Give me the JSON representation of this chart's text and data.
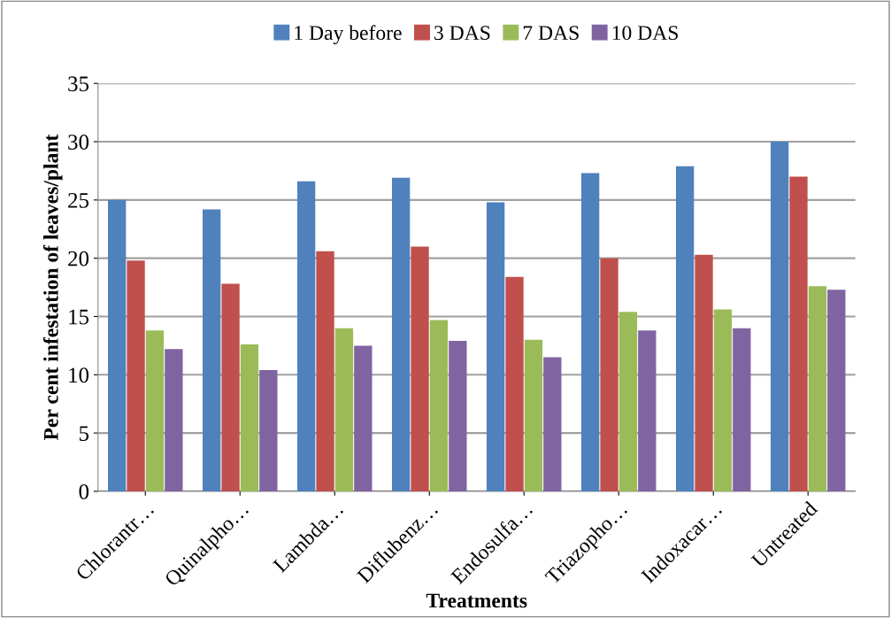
{
  "chart_data": {
    "type": "bar",
    "xlabel": "Treatments",
    "ylabel": "Per cent infestation of leaves/plant",
    "categories": [
      "Chlorantr…",
      "Quinalpho…",
      "Lambda…",
      "Diflubenz…",
      "Endosulfa…",
      "Triazopho…",
      "Indoxacar…",
      "Untreated"
    ],
    "series": [
      {
        "name": "1 Day before",
        "color": "#4f81bd",
        "values": [
          25.0,
          24.2,
          26.6,
          26.9,
          24.8,
          27.3,
          27.9,
          30.0
        ]
      },
      {
        "name": "3 DAS",
        "color": "#c0504d",
        "values": [
          19.8,
          17.8,
          20.6,
          21.0,
          18.4,
          20.0,
          20.3,
          27.0
        ]
      },
      {
        "name": "7 DAS",
        "color": "#9bbb59",
        "values": [
          13.8,
          12.6,
          14.0,
          14.7,
          13.0,
          15.4,
          15.6,
          17.6
        ]
      },
      {
        "name": "10 DAS",
        "color": "#8064a2",
        "values": [
          12.2,
          10.4,
          12.5,
          12.9,
          11.5,
          13.8,
          14.0,
          17.3
        ]
      }
    ],
    "ylim": [
      0,
      35
    ],
    "yticks": [
      0,
      5,
      10,
      15,
      20,
      25,
      30,
      35
    ],
    "grid": "y",
    "legend": "top"
  }
}
